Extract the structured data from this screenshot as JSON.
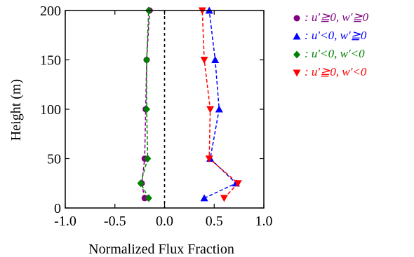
{
  "chart_data": {
    "type": "line",
    "xlabel": "Normalized Flux Fraction",
    "ylabel": "Height (m)",
    "xlim": [
      -1.0,
      1.0
    ],
    "ylim": [
      0,
      200
    ],
    "x_ticks": [
      -1.0,
      -0.5,
      0.0,
      0.5,
      1.0
    ],
    "x_tick_labels": [
      "-1.0",
      "-0.5",
      "0.0",
      "0.5",
      "1.0"
    ],
    "y_ticks": [
      0,
      50,
      100,
      150,
      200
    ],
    "y_tick_labels": [
      "0",
      "50",
      "100",
      "150",
      "200"
    ],
    "zero_line": true,
    "grid": false,
    "legend_position": "outside-right",
    "series": [
      {
        "name": ": u′≧0, w′≧0",
        "color": "#800080",
        "marker": "circle",
        "points": [
          [
            -0.2,
            10
          ],
          [
            -0.23,
            25
          ],
          [
            -0.2,
            50
          ],
          [
            -0.19,
            100
          ],
          [
            -0.18,
            150
          ],
          [
            -0.15,
            200
          ]
        ]
      },
      {
        "name": ": u′<0, w′≧0",
        "color": "#0000ff",
        "marker": "triangle-up",
        "points": [
          [
            0.4,
            10
          ],
          [
            0.72,
            25
          ],
          [
            0.46,
            50
          ],
          [
            0.55,
            100
          ],
          [
            0.51,
            150
          ],
          [
            0.45,
            200
          ]
        ]
      },
      {
        "name": ": u′<0, w′<0",
        "color": "#008000",
        "marker": "diamond",
        "points": [
          [
            -0.16,
            10
          ],
          [
            -0.24,
            25
          ],
          [
            -0.17,
            50
          ],
          [
            -0.18,
            100
          ],
          [
            -0.18,
            150
          ],
          [
            -0.16,
            200
          ]
        ]
      },
      {
        "name": ": u′≧0, w′<0",
        "color": "#ff0000",
        "marker": "triangle-down",
        "points": [
          [
            0.6,
            10
          ],
          [
            0.74,
            25
          ],
          [
            0.45,
            50
          ],
          [
            0.46,
            100
          ],
          [
            0.4,
            150
          ],
          [
            0.38,
            200
          ]
        ]
      }
    ]
  }
}
